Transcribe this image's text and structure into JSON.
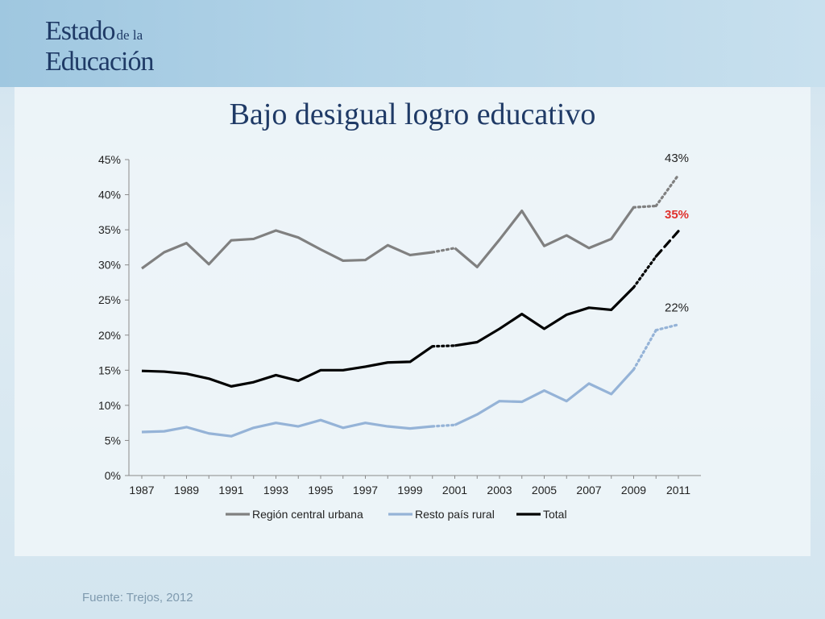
{
  "logo": {
    "line1_big": "Estado",
    "line1_small": "de la",
    "line2": "Educación"
  },
  "slide_title": "Bajo desigual logro educativo",
  "source": "Fuente: Trejos, 2012",
  "chart_data": {
    "type": "line",
    "title": "",
    "xlabel": "",
    "ylabel": "",
    "x": [
      1987,
      1988,
      1989,
      1990,
      1991,
      1992,
      1993,
      1994,
      1995,
      1996,
      1997,
      1998,
      1999,
      2000,
      2001,
      2002,
      2003,
      2004,
      2005,
      2006,
      2007,
      2008,
      2009,
      2010,
      2011
    ],
    "xticks": [
      "1987",
      "1989",
      "1991",
      "1993",
      "1995",
      "1997",
      "1999",
      "2001",
      "2003",
      "2005",
      "2007",
      "2009",
      "2011"
    ],
    "ylim": [
      0,
      45
    ],
    "yticks": [
      "0%",
      "5%",
      "10%",
      "15%",
      "20%",
      "25%",
      "30%",
      "35%",
      "40%",
      "45%"
    ],
    "legend_position": "bottom",
    "series": [
      {
        "name": "Región central urbana",
        "color": "#808080",
        "values": [
          29.5,
          31.8,
          33.1,
          30.1,
          33.5,
          33.7,
          34.9,
          33.9,
          32.2,
          30.6,
          30.7,
          32.8,
          31.4,
          31.8,
          32.4,
          29.7,
          33.6,
          37.7,
          32.7,
          34.2,
          32.4,
          33.7,
          38.2,
          38.4,
          42.8
        ],
        "end_label": "43%",
        "end_label_color": "#222222"
      },
      {
        "name": "Resto país rural",
        "color": "#95b3d7",
        "values": [
          6.2,
          6.3,
          6.9,
          6.0,
          5.6,
          6.8,
          7.5,
          7.0,
          7.9,
          6.8,
          7.5,
          7.0,
          6.7,
          7.0,
          7.2,
          8.7,
          10.6,
          10.5,
          12.1,
          10.6,
          13.1,
          11.6,
          15.1,
          20.7,
          21.5
        ],
        "end_label": "22%",
        "end_label_color": "#222222"
      },
      {
        "name": "Total",
        "color": "#000000",
        "values": [
          14.9,
          14.8,
          14.5,
          13.8,
          12.7,
          13.3,
          14.3,
          13.5,
          15.0,
          15.0,
          15.5,
          16.1,
          16.2,
          18.4,
          18.5,
          19.0,
          20.9,
          23.0,
          20.9,
          22.9,
          23.9,
          23.6,
          26.8,
          31.2,
          34.8
        ],
        "end_label": "35%",
        "end_label_color": "#e0312c"
      }
    ]
  }
}
